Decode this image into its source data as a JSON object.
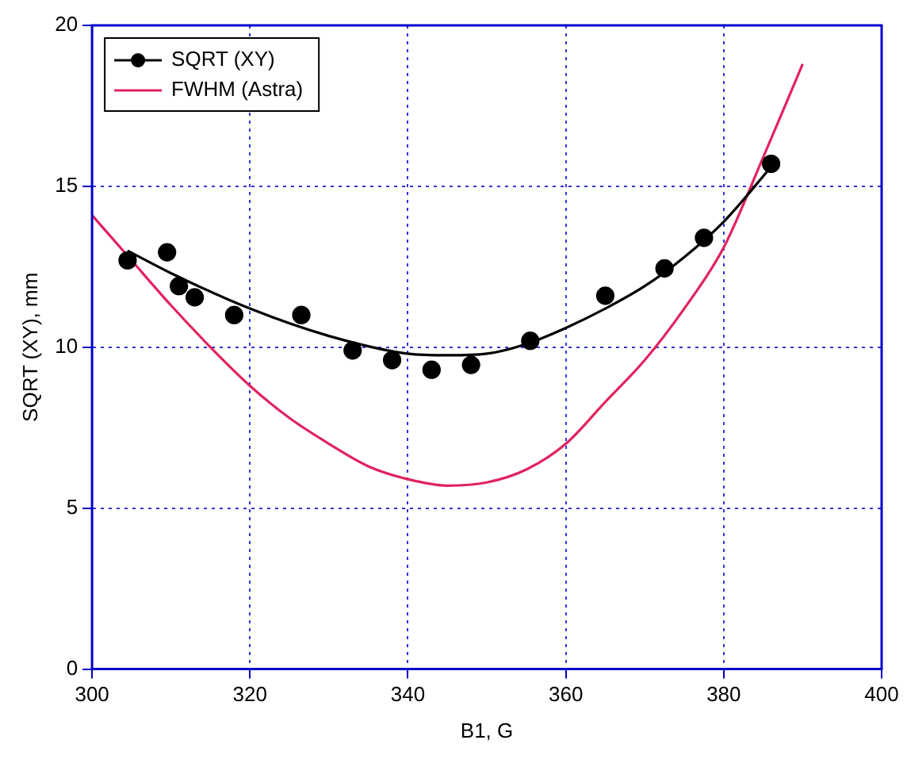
{
  "chart_data": {
    "type": "line",
    "xlabel": "B1, G",
    "ylabel": "SQRT (XY), mm",
    "xlim": [
      300,
      400
    ],
    "xticks": [
      300,
      320,
      340,
      360,
      380,
      400
    ],
    "ylim": [
      0,
      20
    ],
    "yticks": [
      0,
      5,
      10,
      15,
      20
    ],
    "grid": true,
    "legend": "top left",
    "series": [
      {
        "name": "SQRT (XY)",
        "color": "#000000",
        "type": "scatter",
        "marker": "circle",
        "x": [
          304.5,
          309.5,
          311,
          313,
          318,
          326.5,
          333,
          338,
          343,
          348,
          355.5,
          365,
          372.5,
          377.5,
          386
        ],
        "values": [
          12.7,
          12.95,
          11.9,
          11.55,
          11.0,
          11.0,
          9.9,
          9.6,
          9.3,
          9.45,
          10.2,
          11.6,
          12.45,
          13.4,
          15.7
        ]
      },
      {
        "color": "#000000",
        "marker": "none",
        "x": [
          304.5,
          310,
          320,
          330,
          340,
          345,
          350,
          355,
          360,
          365,
          370,
          375,
          380,
          386
        ],
        "values": [
          13.0,
          12.3,
          11.2,
          10.35,
          9.8,
          9.75,
          9.8,
          10.1,
          10.6,
          11.2,
          11.9,
          12.8,
          13.9,
          15.6
        ]
      },
      {
        "name": "FWHM (Astra)",
        "color": "#e0245e",
        "marker": "none",
        "x": [
          300,
          305,
          310,
          315,
          320,
          325,
          330,
          335,
          340,
          345,
          350,
          355,
          360,
          365,
          370,
          375,
          380,
          385,
          390
        ],
        "values": [
          14.1,
          12.7,
          11.3,
          10.0,
          8.8,
          7.8,
          7.0,
          6.3,
          5.9,
          5.7,
          5.8,
          6.2,
          7.0,
          8.3,
          9.6,
          11.2,
          13.1,
          15.9,
          18.8
        ]
      }
    ]
  }
}
